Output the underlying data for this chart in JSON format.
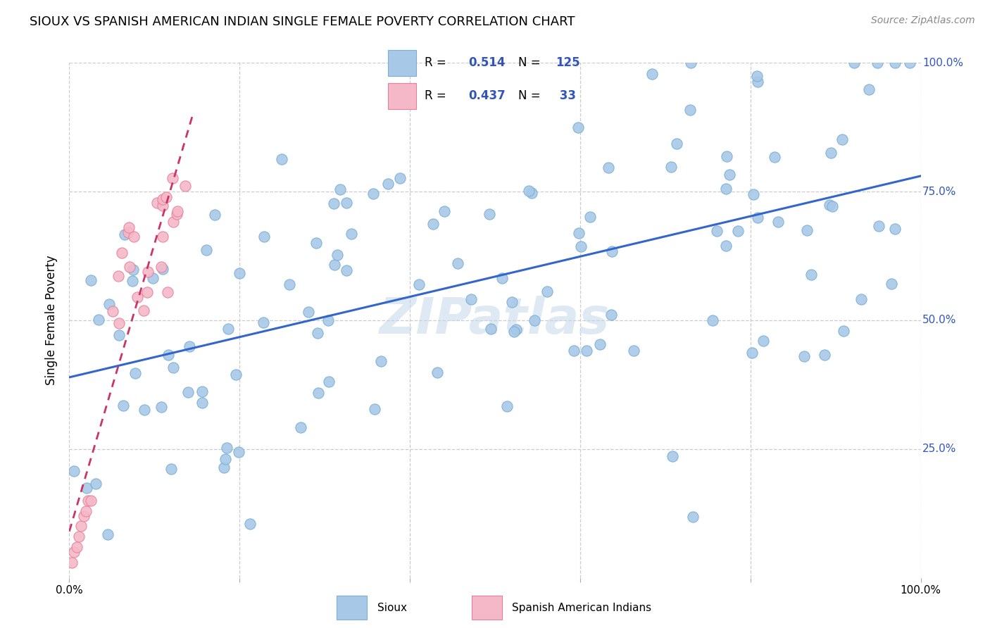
{
  "title": "SIOUX VS SPANISH AMERICAN INDIAN SINGLE FEMALE POVERTY CORRELATION CHART",
  "source": "Source: ZipAtlas.com",
  "ylabel": "Single Female Poverty",
  "sioux_color": "#a8c8e8",
  "sioux_edge": "#7bafd4",
  "spanish_color": "#f4b8c8",
  "spanish_edge": "#e8809a",
  "trend_sioux_color": "#3366cc",
  "trend_spanish_color": "#cc3366",
  "trend_spanish_style": "dashed",
  "sioux_R": 0.514,
  "sioux_N": 125,
  "spanish_R": 0.437,
  "spanish_N": 33,
  "watermark": "ZIPatlas",
  "legend_R_N_color": "#3355bb",
  "right_tick_color": "#3355bb",
  "grid_color": "#cccccc",
  "title_fontsize": 13,
  "tick_fontsize": 11
}
